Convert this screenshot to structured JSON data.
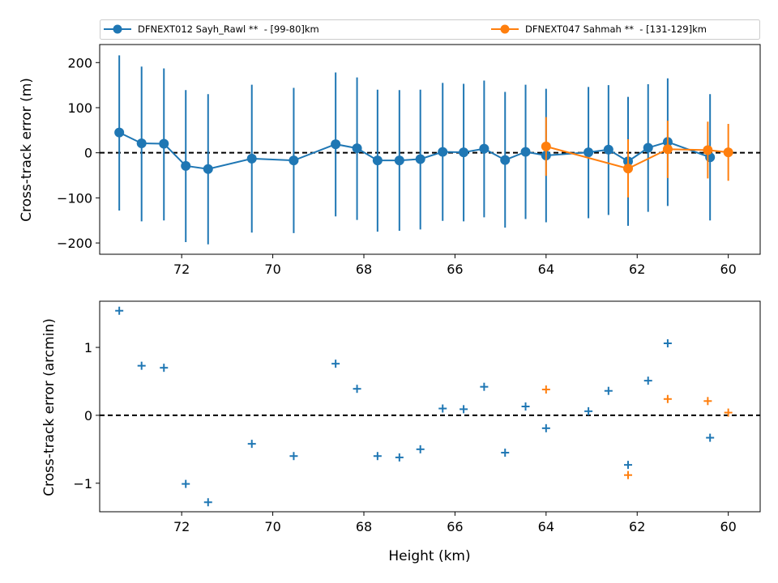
{
  "colors": {
    "series1": "#1f77b4",
    "series2": "#ff7f0e",
    "zero_line": "#000000"
  },
  "chart_data": [
    {
      "type": "scatter",
      "panel": "top",
      "xlabel": "",
      "ylabel": "Cross-track error (m)",
      "xlim": [
        73.8,
        59.3
      ],
      "ylim": [
        -225,
        240
      ],
      "x_ticks": [
        72,
        70,
        68,
        66,
        64,
        62,
        60
      ],
      "y_ticks": [
        -200,
        -100,
        0,
        100,
        200
      ],
      "y_tick_labels": [
        "−200",
        "−100",
        "0",
        "100",
        "200"
      ],
      "reference_line": 0,
      "legend": {
        "placement": "top",
        "entries": [
          "DFNEXT012 Sayh_Rawl **  - [99-80]km",
          "DFNEXT047 Sahmah **  - [131-129]km"
        ]
      },
      "series": [
        {
          "name": "DFNEXT012 Sayh_Rawl **  - [99-80]km",
          "marker": "circle-errorbar-line",
          "points": [
            {
              "x": 73.37,
              "y": 45,
              "lo": -128,
              "hi": 216
            },
            {
              "x": 72.88,
              "y": 21,
              "lo": -152,
              "hi": 191
            },
            {
              "x": 72.39,
              "y": 20,
              "lo": -150,
              "hi": 187
            },
            {
              "x": 71.91,
              "y": -29,
              "lo": -198,
              "hi": 139
            },
            {
              "x": 71.42,
              "y": -36,
              "lo": -203,
              "hi": 130
            },
            {
              "x": 70.46,
              "y": -13,
              "lo": -177,
              "hi": 151
            },
            {
              "x": 69.54,
              "y": -17,
              "lo": -178,
              "hi": 144
            },
            {
              "x": 68.62,
              "y": 19,
              "lo": -141,
              "hi": 178
            },
            {
              "x": 68.15,
              "y": 10,
              "lo": -149,
              "hi": 167
            },
            {
              "x": 67.7,
              "y": -17,
              "lo": -175,
              "hi": 140
            },
            {
              "x": 67.22,
              "y": -17,
              "lo": -173,
              "hi": 139
            },
            {
              "x": 66.76,
              "y": -14,
              "lo": -170,
              "hi": 140
            },
            {
              "x": 66.27,
              "y": 2,
              "lo": -151,
              "hi": 155
            },
            {
              "x": 65.81,
              "y": 1,
              "lo": -152,
              "hi": 153
            },
            {
              "x": 65.36,
              "y": 9,
              "lo": -143,
              "hi": 160
            },
            {
              "x": 64.9,
              "y": -16,
              "lo": -166,
              "hi": 135
            },
            {
              "x": 64.45,
              "y": 2,
              "lo": -147,
              "hi": 151
            },
            {
              "x": 64.0,
              "y": -6,
              "lo": -154,
              "hi": 142
            },
            {
              "x": 63.07,
              "y": 1,
              "lo": -145,
              "hi": 146
            },
            {
              "x": 62.63,
              "y": 7,
              "lo": -138,
              "hi": 150
            },
            {
              "x": 62.2,
              "y": -19,
              "lo": -162,
              "hi": 124
            },
            {
              "x": 61.76,
              "y": 11,
              "lo": -131,
              "hi": 152
            },
            {
              "x": 61.33,
              "y": 24,
              "lo": -118,
              "hi": 165
            },
            {
              "x": 60.4,
              "y": -10,
              "lo": -150,
              "hi": 130
            }
          ]
        },
        {
          "name": "DFNEXT047 Sahmah **  - [131-129]km",
          "marker": "circle-errorbar-line",
          "points": [
            {
              "x": 64.0,
              "y": 14,
              "lo": -51,
              "hi": 79
            },
            {
              "x": 62.2,
              "y": -35,
              "lo": -99,
              "hi": 30
            },
            {
              "x": 61.33,
              "y": 8,
              "lo": -56,
              "hi": 71
            },
            {
              "x": 60.45,
              "y": 6,
              "lo": -57,
              "hi": 69
            },
            {
              "x": 60.0,
              "y": 1,
              "lo": -62,
              "hi": 64
            }
          ]
        }
      ]
    },
    {
      "type": "scatter",
      "panel": "bottom",
      "xlabel": "Height (km)",
      "ylabel": "Cross-track error (arcmin)",
      "xlim": [
        73.8,
        59.3
      ],
      "ylim": [
        -1.42,
        1.68
      ],
      "x_ticks": [
        72,
        70,
        68,
        66,
        64,
        62,
        60
      ],
      "y_ticks": [
        -1,
        0,
        1
      ],
      "y_tick_labels": [
        "−1",
        "0",
        "1"
      ],
      "reference_line": 0,
      "series": [
        {
          "name": "DFNEXT012 Sayh_Rawl **  - [99-80]km",
          "marker": "plus",
          "points": [
            {
              "x": 73.37,
              "y": 1.54
            },
            {
              "x": 72.88,
              "y": 0.73
            },
            {
              "x": 72.39,
              "y": 0.7
            },
            {
              "x": 71.91,
              "y": -1.01
            },
            {
              "x": 71.42,
              "y": -1.28
            },
            {
              "x": 70.46,
              "y": -0.42
            },
            {
              "x": 69.54,
              "y": -0.6
            },
            {
              "x": 68.62,
              "y": 0.76
            },
            {
              "x": 68.15,
              "y": 0.39
            },
            {
              "x": 67.7,
              "y": -0.6
            },
            {
              "x": 67.22,
              "y": -0.62
            },
            {
              "x": 66.76,
              "y": -0.5
            },
            {
              "x": 66.27,
              "y": 0.1
            },
            {
              "x": 65.81,
              "y": 0.09
            },
            {
              "x": 65.36,
              "y": 0.42
            },
            {
              "x": 64.9,
              "y": -0.55
            },
            {
              "x": 64.45,
              "y": 0.13
            },
            {
              "x": 64.0,
              "y": -0.19
            },
            {
              "x": 63.07,
              "y": 0.06
            },
            {
              "x": 62.63,
              "y": 0.36
            },
            {
              "x": 62.2,
              "y": -0.73
            },
            {
              "x": 61.76,
              "y": 0.51
            },
            {
              "x": 61.33,
              "y": 1.06
            },
            {
              "x": 60.4,
              "y": -0.33
            }
          ]
        },
        {
          "name": "DFNEXT047 Sahmah **  - [131-129]km",
          "marker": "plus",
          "points": [
            {
              "x": 64.0,
              "y": 0.38
            },
            {
              "x": 62.2,
              "y": -0.88
            },
            {
              "x": 61.33,
              "y": 0.24
            },
            {
              "x": 60.45,
              "y": 0.21
            },
            {
              "x": 60.0,
              "y": 0.04
            }
          ]
        }
      ]
    }
  ]
}
